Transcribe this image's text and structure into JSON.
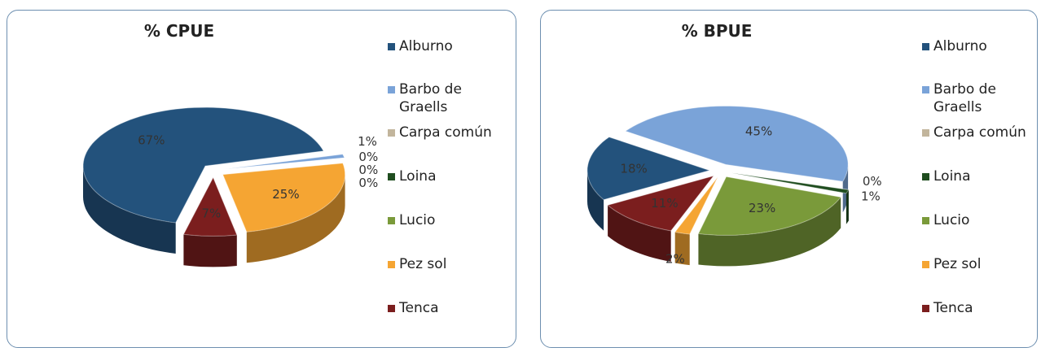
{
  "chart_data": [
    {
      "type": "pie",
      "title": "% CPUE",
      "categories": [
        "Alburno",
        "Barbo de Graells",
        "Carpa común",
        "Loina",
        "Lucio",
        "Pez sol",
        "Tenca"
      ],
      "values": [
        67,
        1,
        0,
        0,
        0,
        25,
        7
      ],
      "value_labels": [
        "67%",
        "1%",
        "0%",
        "0%",
        "0%",
        "25%",
        "7%"
      ],
      "colors": [
        "#23527c",
        "#7aa3d8",
        "#c2b59c",
        "#1f4d1f",
        "#7a9a3a",
        "#f5a533",
        "#7b1e1e"
      ],
      "legend": "right"
    },
    {
      "type": "pie",
      "title": "% BPUE",
      "categories": [
        "Alburno",
        "Barbo de Graells",
        "Carpa común",
        "Loina",
        "Lucio",
        "Pez sol",
        "Tenca"
      ],
      "values": [
        18,
        45,
        0,
        1,
        23,
        2,
        11
      ],
      "value_labels": [
        "18%",
        "45%",
        "0%",
        "1%",
        "23%",
        "2%",
        "11%"
      ],
      "colors": [
        "#23527c",
        "#7aa3d8",
        "#c2b59c",
        "#1f4d1f",
        "#7a9a3a",
        "#f5a533",
        "#7b1e1e"
      ],
      "legend": "right"
    }
  ]
}
